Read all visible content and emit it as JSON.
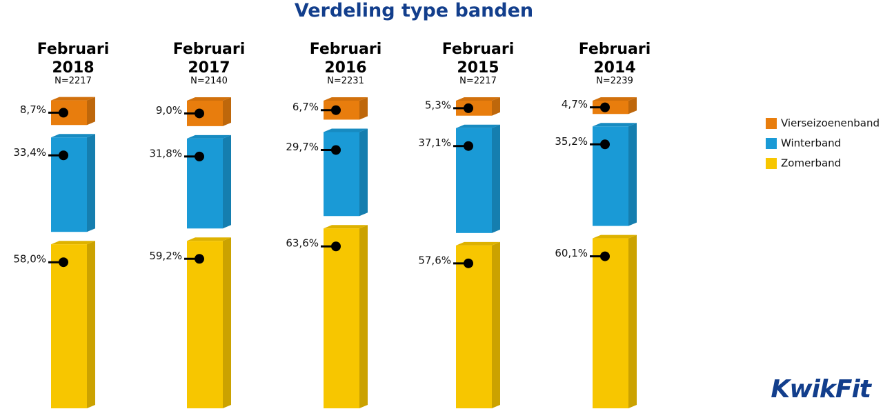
{
  "chart_data": {
    "type": "stacked-bar-3d",
    "title": "Verdeling type banden",
    "categories": [
      "Februari 2018",
      "Februari 2017",
      "Februari 2016",
      "Februari 2015",
      "Februari 2014"
    ],
    "subtitles": [
      "N=2217",
      "N=2140",
      "N=2231",
      "N=2217",
      "N=2239"
    ],
    "series": [
      {
        "name": "Zomerband",
        "color": "#f7c600",
        "values": [
          58.0,
          59.2,
          63.6,
          57.6,
          60.1
        ],
        "value_labels": [
          "58,0%",
          "59,2%",
          "63,6%",
          "57,6%",
          "60,1%"
        ]
      },
      {
        "name": "Winterband",
        "color": "#1a9ad6",
        "values": [
          33.4,
          31.8,
          29.7,
          37.1,
          35.2
        ],
        "value_labels": [
          "33,4%",
          "31,8%",
          "29,7%",
          "37,1%",
          "35,2%"
        ]
      },
      {
        "name": "Vierseizoenenband",
        "color": "#e87d0d",
        "values": [
          8.7,
          9.0,
          6.7,
          5.3,
          4.7
        ],
        "value_labels": [
          "8,7%",
          "9,0%",
          "6,7%",
          "5,3%",
          "4,7%"
        ]
      }
    ],
    "legend": "right",
    "logo": "KwikFit"
  }
}
